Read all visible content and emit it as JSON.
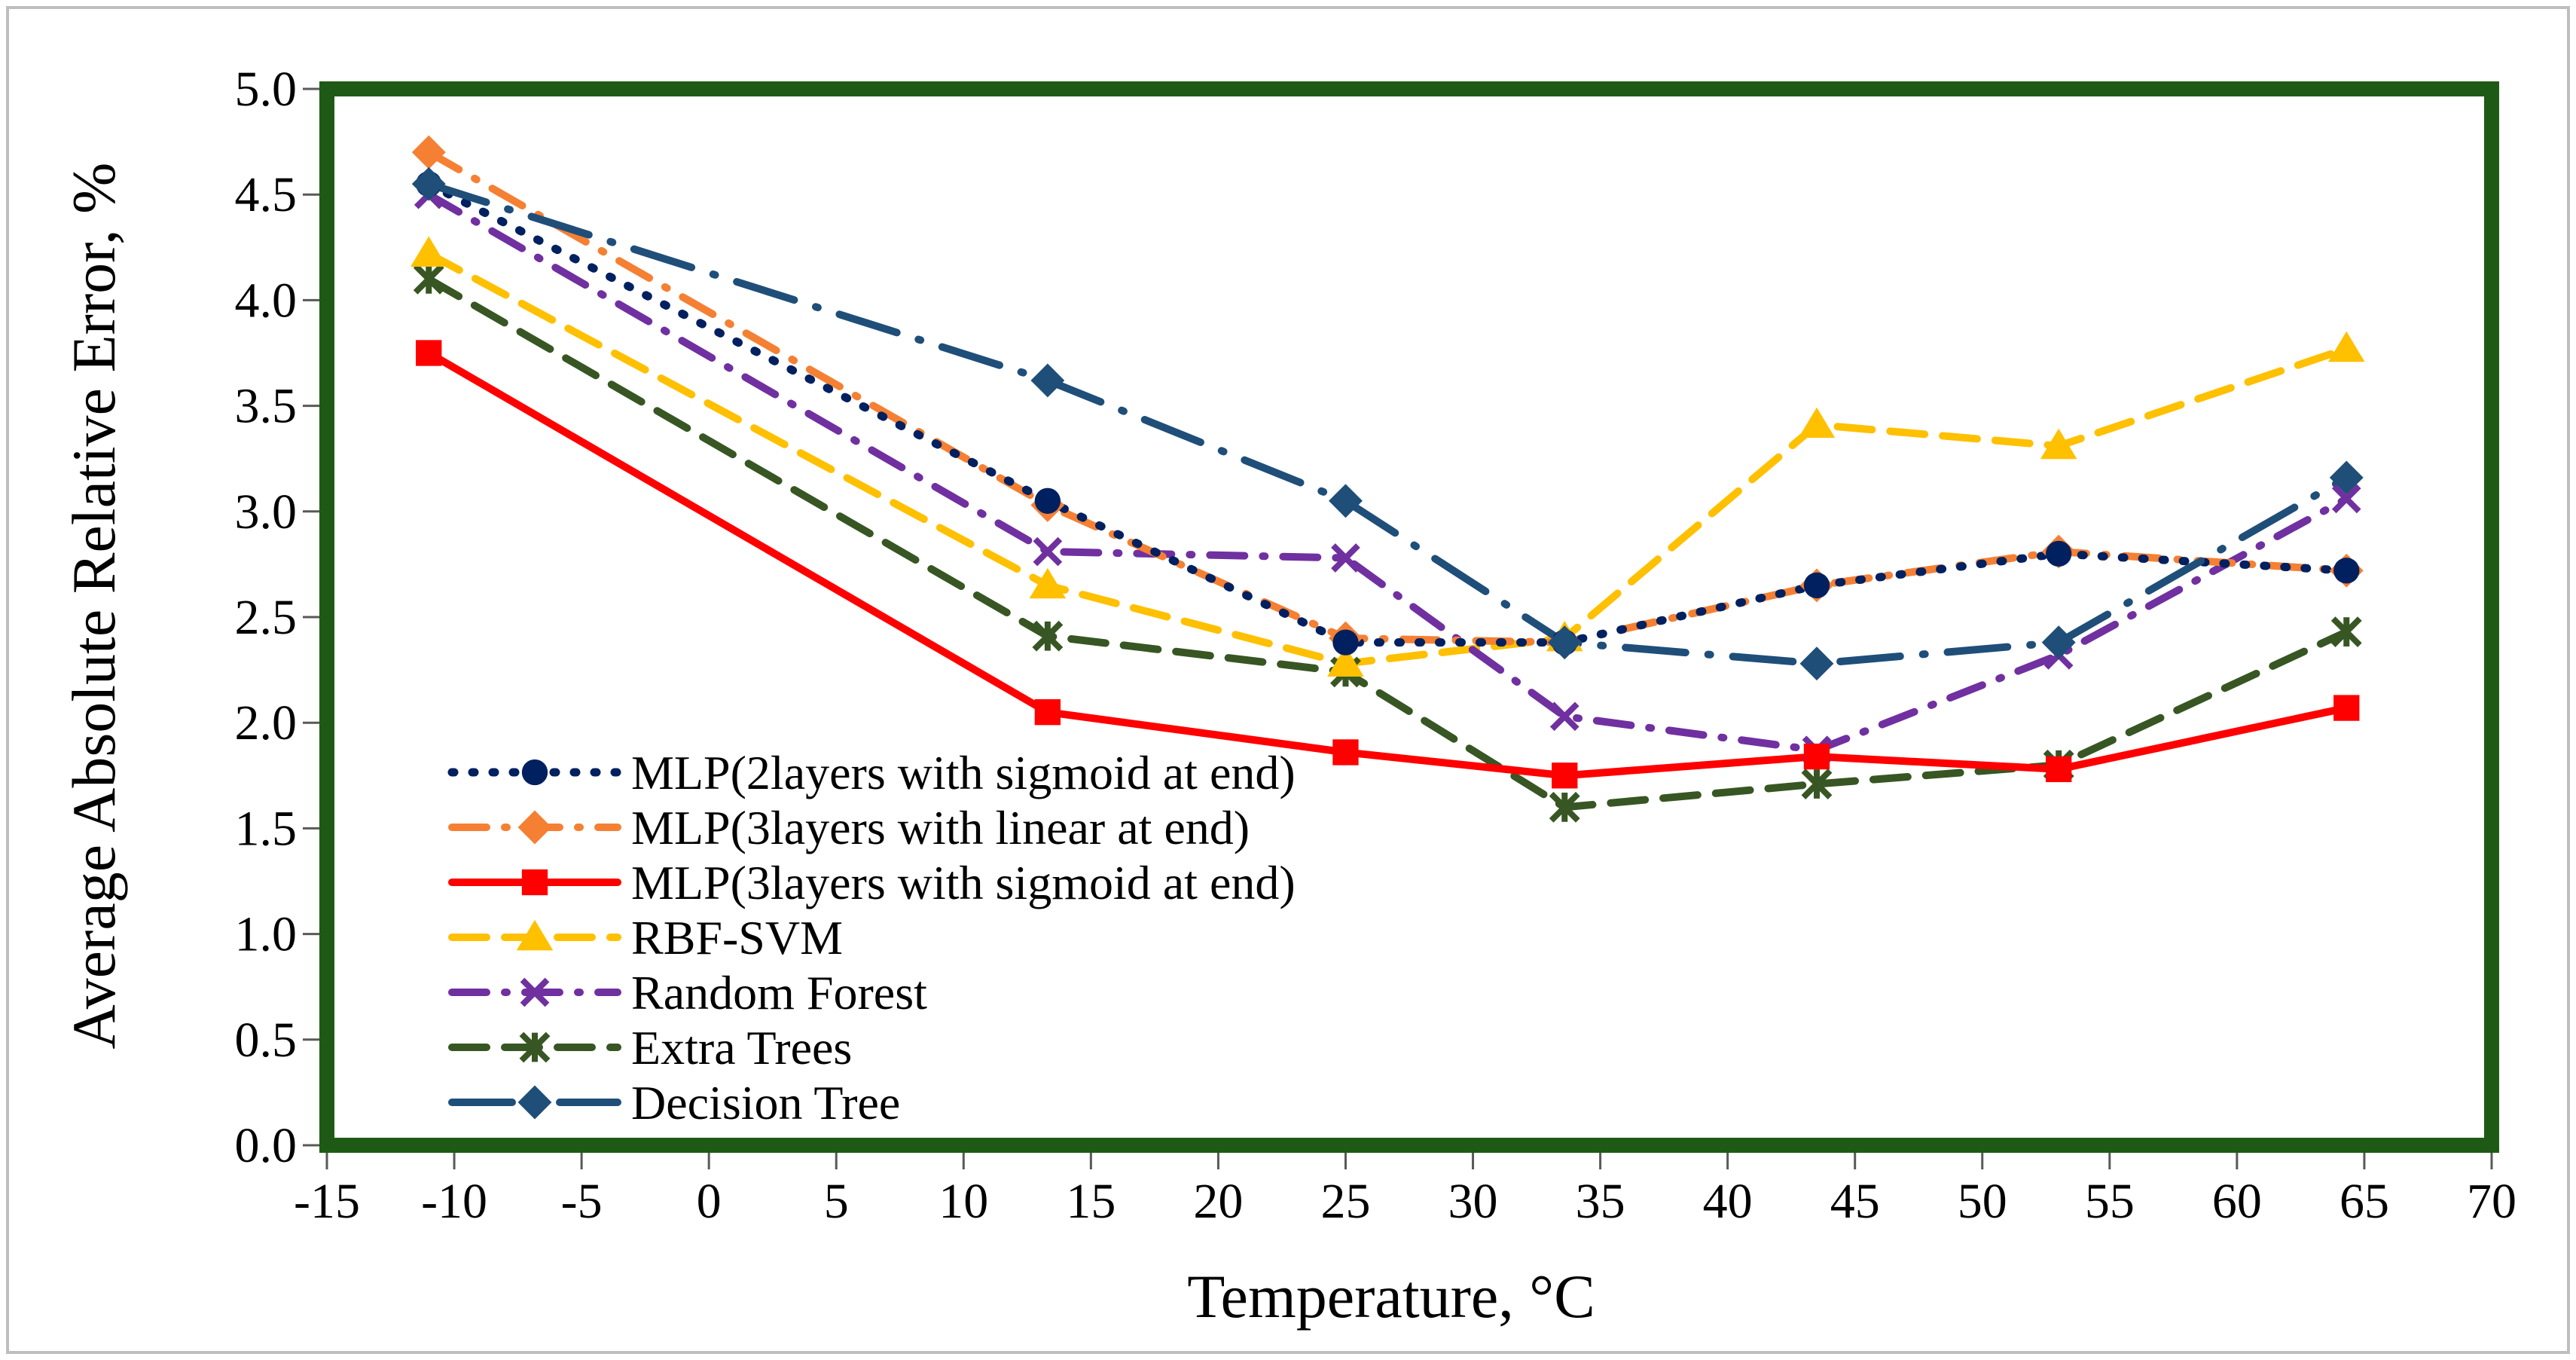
{
  "chart_data": {
    "type": "line",
    "xlabel": "Temperature, °C",
    "ylabel": "Average Absolute Relative Error, %",
    "xlim": [
      -15,
      70
    ],
    "ylim": [
      0.0,
      5.0
    ],
    "xticks": [
      "-15",
      "-10",
      "-5",
      "0",
      "5",
      "10",
      "15",
      "20",
      "25",
      "30",
      "35",
      "40",
      "45",
      "50",
      "55",
      "60",
      "65",
      "70"
    ],
    "yticks": [
      "0.0",
      "0.5",
      "1.0",
      "1.5",
      "2.0",
      "2.5",
      "3.0",
      "3.5",
      "4.0",
      "4.5",
      "5.0"
    ],
    "grid": false,
    "legend_position": "bottom-left",
    "x": [
      -11,
      13.3,
      25,
      33.6,
      43.5,
      53,
      64.3
    ],
    "series": [
      {
        "name": "MLP(2layers with sigmoid at end)",
        "color": "#002060",
        "marker": "circle",
        "dash": "dot",
        "values": [
          4.55,
          3.05,
          2.38,
          2.38,
          2.65,
          2.8,
          2.72
        ]
      },
      {
        "name": "MLP(3layers with linear at end)",
        "color": "#f58033",
        "marker": "diamond",
        "dash": "dash-dot",
        "values": [
          4.7,
          3.03,
          2.4,
          2.38,
          2.65,
          2.81,
          2.72
        ]
      },
      {
        "name": "MLP(3layers with sigmoid at end)",
        "color": "#ff0000",
        "marker": "square",
        "dash": "solid",
        "values": [
          3.75,
          2.05,
          1.86,
          1.75,
          1.84,
          1.78,
          2.07
        ]
      },
      {
        "name": "RBF-SVM",
        "color": "#ffc000",
        "marker": "triangle",
        "dash": "dash",
        "values": [
          4.22,
          2.65,
          2.28,
          2.4,
          3.41,
          3.31,
          3.77
        ]
      },
      {
        "name": "Random Forest",
        "color": "#7030a0",
        "marker": "x",
        "dash": "dash-dot",
        "values": [
          4.5,
          2.81,
          2.78,
          2.03,
          1.87,
          2.32,
          3.06
        ]
      },
      {
        "name": "Extra Trees",
        "color": "#375623",
        "marker": "asterisk",
        "dash": "dash",
        "values": [
          4.1,
          2.41,
          2.24,
          1.6,
          1.71,
          1.8,
          2.43
        ]
      },
      {
        "name": "Decision Tree",
        "color": "#1f4e79",
        "marker": "diamond",
        "dash": "long-dash-dot",
        "values": [
          4.55,
          3.62,
          3.05,
          2.38,
          2.28,
          2.38,
          3.16
        ]
      }
    ]
  }
}
